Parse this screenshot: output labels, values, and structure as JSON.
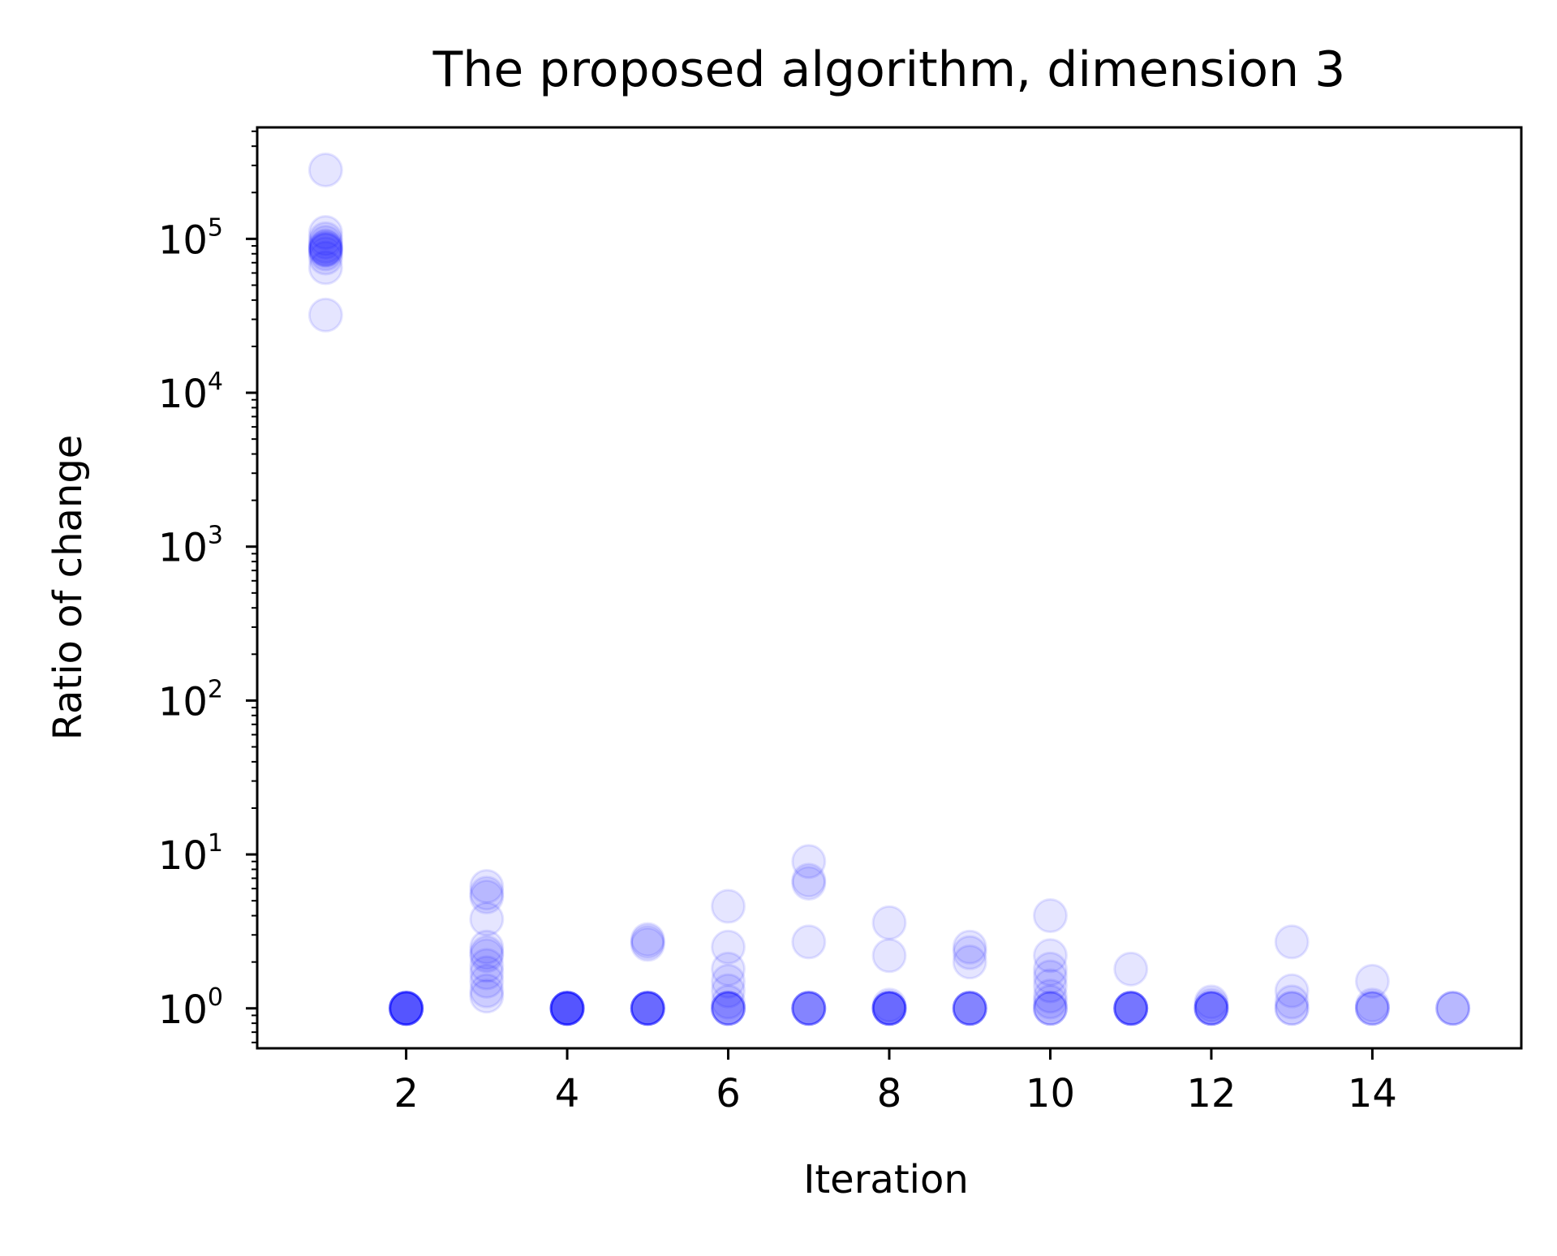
{
  "chart_data": {
    "type": "scatter",
    "title": "The proposed algorithm, dimension 3",
    "xlabel": "Iteration",
    "ylabel": "Ratio of change",
    "xlim": [
      0.15,
      15.85
    ],
    "ylim": [
      0.55,
      530000
    ],
    "yscale": "log",
    "xticks": [
      {
        "value": 2,
        "label": "2"
      },
      {
        "value": 4,
        "label": "4"
      },
      {
        "value": 6,
        "label": "6"
      },
      {
        "value": 8,
        "label": "8"
      },
      {
        "value": 10,
        "label": "10"
      },
      {
        "value": 12,
        "label": "12"
      },
      {
        "value": 14,
        "label": "14"
      }
    ],
    "yticks": [
      {
        "value": 1,
        "base": "10",
        "exp": "0"
      },
      {
        "value": 10,
        "base": "10",
        "exp": "1"
      },
      {
        "value": 100,
        "base": "10",
        "exp": "2"
      },
      {
        "value": 1000,
        "base": "10",
        "exp": "3"
      },
      {
        "value": 10000,
        "base": "10",
        "exp": "4"
      },
      {
        "value": 100000,
        "base": "10",
        "exp": "5"
      }
    ],
    "grid": false,
    "marker_color": "#0000ff",
    "marker_alpha": 0.1,
    "series": [
      {
        "x": [
          1,
          1,
          1,
          1,
          1,
          1,
          1,
          1,
          1,
          1,
          1,
          1,
          1,
          2,
          2,
          2,
          2,
          2,
          2,
          2,
          2,
          2,
          2,
          3,
          3,
          3,
          3,
          3,
          3,
          3,
          3,
          3,
          3,
          3,
          3,
          4,
          4,
          4,
          4,
          4,
          4,
          4,
          4,
          4,
          4,
          5,
          5,
          5,
          5,
          5,
          5,
          5,
          5,
          5,
          5,
          5,
          6,
          6,
          6,
          6,
          6,
          6,
          6,
          6,
          6,
          6,
          6,
          7,
          7,
          7,
          7,
          7,
          7,
          7,
          7,
          7,
          7,
          8,
          8,
          8,
          8,
          8,
          8,
          8,
          8,
          8,
          8,
          9,
          9,
          9,
          9,
          9,
          9,
          9,
          9,
          9,
          10,
          10,
          10,
          10,
          10,
          10,
          10,
          10,
          10,
          10,
          11,
          11,
          11,
          11,
          11,
          11,
          11,
          11,
          12,
          12,
          12,
          12,
          12,
          12,
          12,
          13,
          13,
          13,
          13,
          13,
          14,
          14,
          14,
          14,
          14,
          15,
          15,
          15
        ],
        "y": [
          280000,
          110000,
          100000,
          95000,
          90000,
          88000,
          86000,
          85000,
          84000,
          80000,
          75000,
          65000,
          32000,
          1,
          1,
          1,
          1,
          1,
          1,
          1,
          1,
          1,
          1,
          6.2,
          5.6,
          5.3,
          3.8,
          2.5,
          2.3,
          2.2,
          1.9,
          1.7,
          1.5,
          1.3,
          1.2,
          1,
          1,
          1,
          1,
          1,
          1,
          1,
          1,
          1,
          1,
          2.8,
          2.7,
          2.6,
          1,
          1,
          1,
          1,
          1,
          1,
          1,
          1,
          4.6,
          2.5,
          1.8,
          1.5,
          1.3,
          1.1,
          1,
          1,
          1,
          1,
          1,
          9.0,
          6.8,
          6.5,
          2.7,
          1,
          1,
          1,
          1,
          1,
          1,
          3.6,
          2.2,
          1.05,
          1,
          1,
          1,
          1,
          1,
          1,
          1,
          2.5,
          2.3,
          2.0,
          1,
          1,
          1,
          1,
          1,
          1,
          4.0,
          2.2,
          1.8,
          1.6,
          1.4,
          1.2,
          1.1,
          1,
          1,
          1,
          1.8,
          1,
          1,
          1,
          1,
          1,
          1,
          1,
          1.1,
          1.05,
          1,
          1,
          1,
          1,
          1,
          2.7,
          1.3,
          1.1,
          1,
          1,
          1.5,
          1.05,
          1,
          1,
          1,
          1,
          1,
          1
        ]
      }
    ]
  }
}
